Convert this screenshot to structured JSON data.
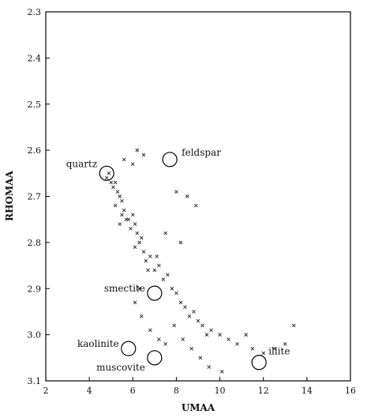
{
  "chart_data": {
    "type": "scatter",
    "title": "",
    "xlabel": "UMAA",
    "ylabel": "RHOMAA",
    "xlim": [
      2,
      16
    ],
    "ylim": [
      2.3,
      3.1
    ],
    "y_inverted": true,
    "grid": false,
    "x_ticks": [
      2,
      4,
      6,
      8,
      10,
      12,
      14,
      16
    ],
    "y_ticks": [
      2.3,
      2.4,
      2.5,
      2.6,
      2.7,
      2.8,
      2.9,
      3.0,
      3.1
    ],
    "x_tick_labels": [
      "2",
      "4",
      "6",
      "8",
      "10",
      "12",
      "14",
      "16"
    ],
    "y_tick_labels": [
      "2.3",
      "2.4",
      "2.5",
      "2.6",
      "2.7",
      "2.8",
      "2.9",
      "3.0",
      "3.1"
    ],
    "annotations": [
      {
        "label": "quartz",
        "x": 4.8,
        "y": 2.65
      },
      {
        "label": "feldspar",
        "x": 7.7,
        "y": 2.62
      },
      {
        "label": "smectite",
        "x": 7.0,
        "y": 2.91
      },
      {
        "label": "kaolinite",
        "x": 5.8,
        "y": 3.03
      },
      {
        "label": "muscovite",
        "x": 7.0,
        "y": 3.05
      },
      {
        "label": "illite",
        "x": 11.8,
        "y": 3.06
      }
    ],
    "series": [
      {
        "points": [
          [
            4.8,
            2.66
          ],
          [
            4.9,
            2.65
          ],
          [
            5.0,
            2.67
          ],
          [
            5.1,
            2.68
          ],
          [
            5.2,
            2.67
          ],
          [
            5.3,
            2.69
          ],
          [
            5.4,
            2.7
          ],
          [
            5.5,
            2.71
          ],
          [
            5.2,
            2.72
          ],
          [
            5.6,
            2.73
          ],
          [
            5.5,
            2.74
          ],
          [
            5.7,
            2.75
          ],
          [
            5.4,
            2.76
          ],
          [
            5.8,
            2.75
          ],
          [
            6.0,
            2.74
          ],
          [
            6.1,
            2.76
          ],
          [
            5.9,
            2.77
          ],
          [
            6.2,
            2.78
          ],
          [
            6.3,
            2.8
          ],
          [
            6.1,
            2.81
          ],
          [
            6.4,
            2.79
          ],
          [
            6.5,
            2.82
          ],
          [
            6.6,
            2.84
          ],
          [
            6.8,
            2.83
          ],
          [
            7.0,
            2.86
          ],
          [
            7.2,
            2.85
          ],
          [
            7.4,
            2.88
          ],
          [
            7.6,
            2.87
          ],
          [
            7.8,
            2.9
          ],
          [
            8.0,
            2.91
          ],
          [
            8.2,
            2.93
          ],
          [
            8.4,
            2.94
          ],
          [
            8.6,
            2.96
          ],
          [
            8.8,
            2.95
          ],
          [
            9.0,
            2.97
          ],
          [
            9.2,
            2.98
          ],
          [
            9.4,
            3.0
          ],
          [
            9.6,
            2.99
          ],
          [
            10.0,
            3.0
          ],
          [
            10.4,
            3.01
          ],
          [
            10.8,
            3.02
          ],
          [
            11.2,
            3.0
          ],
          [
            11.5,
            3.03
          ],
          [
            12.0,
            3.04
          ],
          [
            12.5,
            3.03
          ],
          [
            13.0,
            3.02
          ],
          [
            13.4,
            2.98
          ],
          [
            6.2,
            2.6
          ],
          [
            6.5,
            2.61
          ],
          [
            5.6,
            2.62
          ],
          [
            6.0,
            2.63
          ],
          [
            8.0,
            2.69
          ],
          [
            8.5,
            2.7
          ],
          [
            8.9,
            2.72
          ],
          [
            7.5,
            2.78
          ],
          [
            8.2,
            2.8
          ],
          [
            7.1,
            2.83
          ],
          [
            6.7,
            2.86
          ],
          [
            6.3,
            2.9
          ],
          [
            6.1,
            2.93
          ],
          [
            6.4,
            2.96
          ],
          [
            6.8,
            2.99
          ],
          [
            7.2,
            3.01
          ],
          [
            7.5,
            3.02
          ],
          [
            7.9,
            2.98
          ],
          [
            8.3,
            3.01
          ],
          [
            8.7,
            3.03
          ],
          [
            9.1,
            3.05
          ],
          [
            9.5,
            3.07
          ],
          [
            10.1,
            3.08
          ]
        ]
      }
    ]
  }
}
